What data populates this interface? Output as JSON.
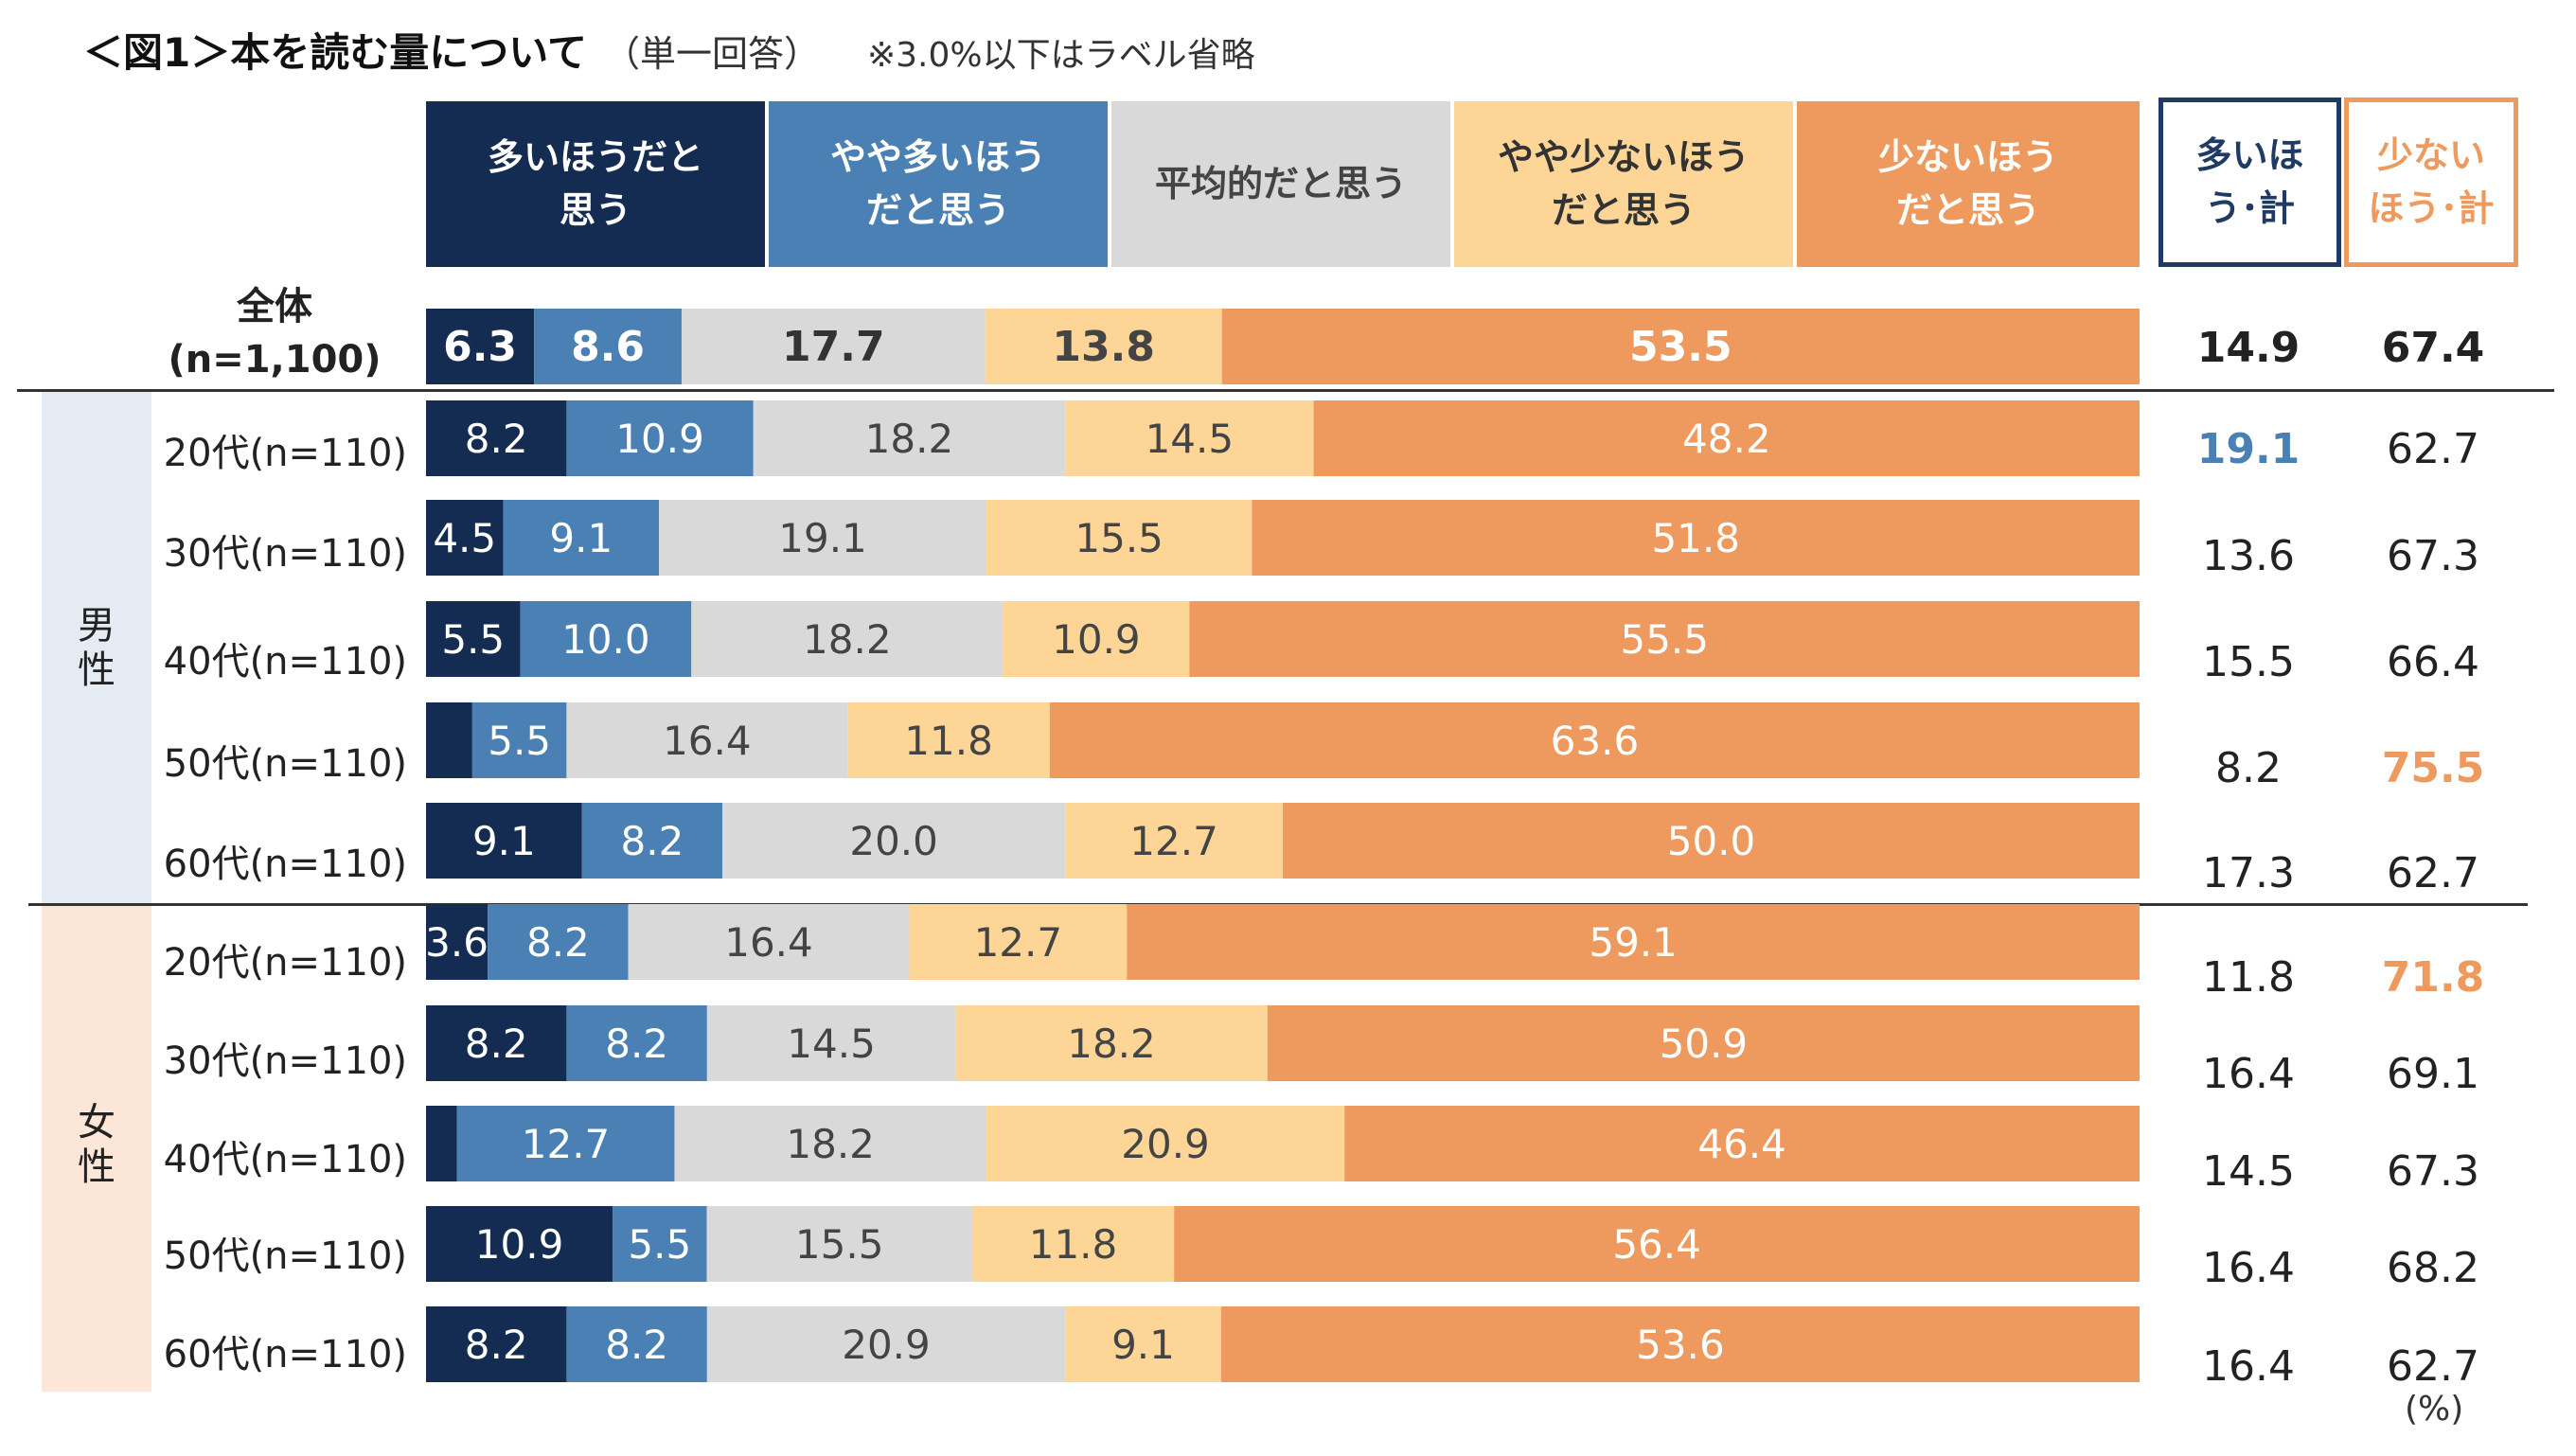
{
  "title": {
    "main": "＜図1＞本を読む量について",
    "sub": "（単一回答）",
    "note": "※3.0%以下はラベル省略"
  },
  "headers": {
    "categories": [
      "多いほうだと思う",
      "やや多いほうだと思う",
      "平均的だと思う",
      "やや少ないほうだと思う",
      "少ないほうだと思う"
    ],
    "categories_display": [
      [
        "多いほうだと",
        "思う"
      ],
      [
        "やや多いほう",
        "だと思う"
      ],
      [
        "平均的だと思う"
      ],
      [
        "やや少ないほう",
        "だと思う"
      ],
      [
        "少ないほう",
        "だと思う"
      ]
    ],
    "sum_many": [
      "多いほ",
      "う･計"
    ],
    "sum_few": [
      "少ない",
      "ほう･計"
    ]
  },
  "groups": {
    "male": [
      "男",
      "性"
    ],
    "female": [
      "女",
      "性"
    ]
  },
  "unit": "(%)",
  "colors": {
    "c0": "#152c52",
    "c1": "#4a80b4",
    "c2": "#d9d9d9",
    "c3": "#fdd697",
    "c4": "#ee9a5e",
    "highlight_blue": "#4a80b4",
    "highlight_orange": "#ee9a5e"
  },
  "chart_data": {
    "type": "bar",
    "orientation": "horizontal-stacked-100",
    "title": "＜図1＞本を読む量について（単一回答）",
    "note": "※3.0%以下はラベル省略",
    "series_names": [
      "多いほうだと思う",
      "やや多いほうだと思う",
      "平均的だと思う",
      "やや少ないほうだと思う",
      "少ないほうだと思う"
    ],
    "rows": [
      {
        "label": "全体",
        "label2": "(n=1,100)",
        "group": "total",
        "values": [
          6.3,
          8.6,
          17.7,
          13.8,
          53.5
        ],
        "sum_many": "14.9",
        "sum_few": "67.4",
        "highlight": ""
      },
      {
        "label": "20代(n=110)",
        "group": "male",
        "values": [
          8.2,
          10.9,
          18.2,
          14.5,
          48.2
        ],
        "sum_many": "19.1",
        "sum_few": "62.7",
        "highlight": "many"
      },
      {
        "label": "30代(n=110)",
        "group": "male",
        "values": [
          4.5,
          9.1,
          19.1,
          15.5,
          51.8
        ],
        "sum_many": "13.6",
        "sum_few": "67.3",
        "highlight": ""
      },
      {
        "label": "40代(n=110)",
        "group": "male",
        "values": [
          5.5,
          10.0,
          18.2,
          10.9,
          55.5
        ],
        "sum_many": "15.5",
        "sum_few": "66.4",
        "highlight": ""
      },
      {
        "label": "50代(n=110)",
        "group": "male",
        "values": [
          2.7,
          5.5,
          16.4,
          11.8,
          63.6
        ],
        "sum_many": "8.2",
        "sum_few": "75.5",
        "highlight": "few"
      },
      {
        "label": "60代(n=110)",
        "group": "male",
        "values": [
          9.1,
          8.2,
          20.0,
          12.7,
          50.0
        ],
        "sum_many": "17.3",
        "sum_few": "62.7",
        "highlight": ""
      },
      {
        "label": "20代(n=110)",
        "group": "female",
        "values": [
          3.6,
          8.2,
          16.4,
          12.7,
          59.1
        ],
        "sum_many": "11.8",
        "sum_few": "71.8",
        "highlight": "few"
      },
      {
        "label": "30代(n=110)",
        "group": "female",
        "values": [
          8.2,
          8.2,
          14.5,
          18.2,
          50.9
        ],
        "sum_many": "16.4",
        "sum_few": "69.1",
        "highlight": ""
      },
      {
        "label": "40代(n=110)",
        "group": "female",
        "values": [
          1.8,
          12.7,
          18.2,
          20.9,
          46.4
        ],
        "sum_many": "14.5",
        "sum_few": "67.3",
        "highlight": ""
      },
      {
        "label": "50代(n=110)",
        "group": "female",
        "values": [
          10.9,
          5.5,
          15.5,
          11.8,
          56.4
        ],
        "sum_many": "16.4",
        "sum_few": "68.2",
        "highlight": ""
      },
      {
        "label": "60代(n=110)",
        "group": "female",
        "values": [
          8.2,
          8.2,
          20.9,
          9.1,
          53.6
        ],
        "sum_many": "16.4",
        "sum_few": "62.7",
        "highlight": ""
      }
    ],
    "label_threshold": 3.0,
    "xlim": [
      0,
      100
    ],
    "unit": "%"
  }
}
